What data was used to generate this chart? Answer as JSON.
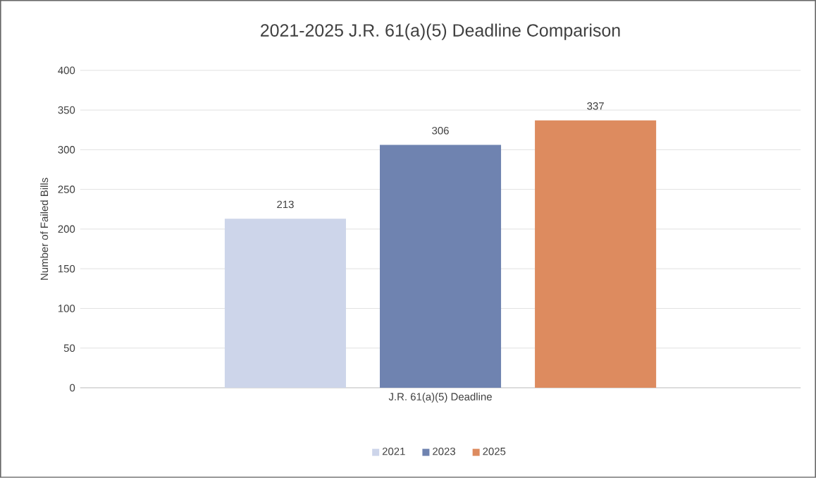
{
  "chart_data": {
    "type": "bar",
    "title": "2021-2025 J.R. 61(a)(5) Deadline Comparison",
    "ylabel": "Number of Failed Bills",
    "categories": [
      "J.R. 61(a)(5) Deadline"
    ],
    "series": [
      {
        "name": "2021",
        "color": "#cdd5ea",
        "values": [
          213
        ]
      },
      {
        "name": "2023",
        "color": "#6f83b0",
        "values": [
          306
        ]
      },
      {
        "name": "2025",
        "color": "#dd8b5f",
        "values": [
          337
        ]
      }
    ],
    "ylim": [
      0,
      400
    ],
    "yticks": [
      0,
      50,
      100,
      150,
      200,
      250,
      300,
      350,
      400
    ],
    "grid": "y",
    "legend": "bottom",
    "data_labels": true
  }
}
